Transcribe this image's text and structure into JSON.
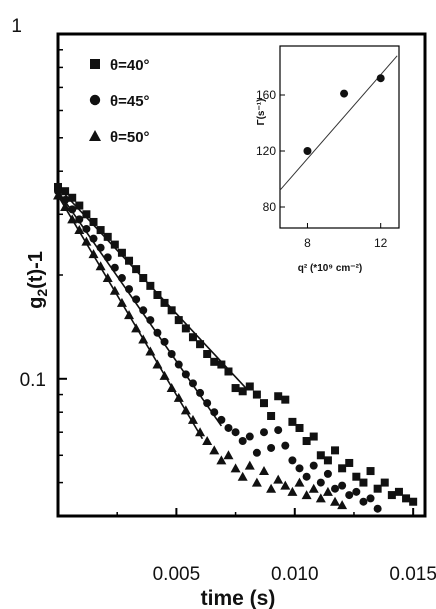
{
  "chart_data": [
    {
      "type": "scatter",
      "xlabel": "time (s)",
      "ylabel": "g2(t)-1",
      "ylabel_main": "g",
      "ylabel_sub": "2",
      "ylabel_rest": "(t)-1",
      "yscale": "log",
      "xlim": [
        0,
        0.0155
      ],
      "ylim": [
        0.04,
        1.0
      ],
      "x_ticks": [
        0.005,
        0.01,
        0.015
      ],
      "x_tick_labels": [
        "0.005",
        "0.010",
        "0.015"
      ],
      "y_ticks": [
        0.1,
        1
      ],
      "y_tick_labels": [
        "0.1",
        "1"
      ],
      "legend_position": "top-left",
      "series": [
        {
          "name": "θ=40°",
          "marker": "square",
          "x": [
            0.0,
            0.0003,
            0.0006,
            0.0009,
            0.0012,
            0.0015,
            0.0018,
            0.0021,
            0.0024,
            0.0027,
            0.003,
            0.0033,
            0.0036,
            0.0039,
            0.0042,
            0.0045,
            0.0048,
            0.0051,
            0.0054,
            0.0057,
            0.006,
            0.0063,
            0.0066,
            0.0069,
            0.0072,
            0.0075,
            0.0078,
            0.0081,
            0.0084,
            0.0087,
            0.009,
            0.0093,
            0.0096,
            0.0099,
            0.0102,
            0.0105,
            0.0108,
            0.0111,
            0.0114,
            0.0117,
            0.012,
            0.0123,
            0.0126,
            0.0129,
            0.0132,
            0.0135,
            0.0138,
            0.0141,
            0.0144,
            0.0147,
            0.015
          ],
          "y": [
            0.36,
            0.35,
            0.335,
            0.318,
            0.3,
            0.285,
            0.27,
            0.258,
            0.245,
            0.232,
            0.22,
            0.208,
            0.196,
            0.186,
            0.175,
            0.166,
            0.158,
            0.148,
            0.14,
            0.132,
            0.126,
            0.118,
            0.112,
            0.11,
            0.105,
            0.094,
            0.092,
            0.095,
            0.09,
            0.085,
            0.078,
            0.089,
            0.087,
            0.075,
            0.072,
            0.066,
            0.068,
            0.06,
            0.058,
            0.062,
            0.055,
            0.057,
            0.052,
            0.05,
            0.054,
            0.048,
            0.05,
            0.046,
            0.047,
            0.045,
            0.044
          ]
        },
        {
          "name": "θ=45°",
          "marker": "circle",
          "x": [
            0.0,
            0.0003,
            0.0006,
            0.0009,
            0.0012,
            0.0015,
            0.0018,
            0.0021,
            0.0024,
            0.0027,
            0.003,
            0.0033,
            0.0036,
            0.0039,
            0.0042,
            0.0045,
            0.0048,
            0.0051,
            0.0054,
            0.0057,
            0.006,
            0.0063,
            0.0066,
            0.0069,
            0.0072,
            0.0075,
            0.0078,
            0.0081,
            0.0084,
            0.0087,
            0.009,
            0.0093,
            0.0096,
            0.0099,
            0.0102,
            0.0105,
            0.0108,
            0.0111,
            0.0114,
            0.0117,
            0.012,
            0.0123,
            0.0126,
            0.0129,
            0.0132,
            0.0135
          ],
          "y": [
            0.35,
            0.33,
            0.31,
            0.29,
            0.272,
            0.255,
            0.24,
            0.225,
            0.21,
            0.196,
            0.182,
            0.17,
            0.158,
            0.148,
            0.136,
            0.128,
            0.118,
            0.11,
            0.103,
            0.097,
            0.091,
            0.085,
            0.08,
            0.076,
            0.072,
            0.07,
            0.066,
            0.068,
            0.061,
            0.07,
            0.063,
            0.071,
            0.064,
            0.058,
            0.055,
            0.052,
            0.056,
            0.05,
            0.053,
            0.048,
            0.049,
            0.046,
            0.047,
            0.044,
            0.045,
            0.042
          ]
        },
        {
          "name": "θ=50°",
          "marker": "triangle",
          "x": [
            0.0,
            0.0003,
            0.0006,
            0.0009,
            0.0012,
            0.0015,
            0.0018,
            0.0021,
            0.0024,
            0.0027,
            0.003,
            0.0033,
            0.0036,
            0.0039,
            0.0042,
            0.0045,
            0.0048,
            0.0051,
            0.0054,
            0.0057,
            0.006,
            0.0063,
            0.0066,
            0.0069,
            0.0072,
            0.0075,
            0.0078,
            0.0081,
            0.0084,
            0.0087,
            0.009,
            0.0093,
            0.0096,
            0.0099,
            0.0102,
            0.0105,
            0.0108,
            0.0111,
            0.0114,
            0.0117,
            0.012
          ],
          "y": [
            0.34,
            0.315,
            0.29,
            0.27,
            0.25,
            0.23,
            0.212,
            0.196,
            0.18,
            0.166,
            0.153,
            0.14,
            0.13,
            0.12,
            0.11,
            0.102,
            0.094,
            0.088,
            0.081,
            0.076,
            0.07,
            0.066,
            0.062,
            0.058,
            0.06,
            0.055,
            0.052,
            0.056,
            0.05,
            0.054,
            0.048,
            0.051,
            0.049,
            0.047,
            0.05,
            0.046,
            0.048,
            0.045,
            0.047,
            0.044,
            0.043
          ]
        }
      ],
      "fit_lines": [
        {
          "series": "θ=40°",
          "x": [
            0.0,
            0.008
          ],
          "y": [
            0.36,
            0.093
          ]
        },
        {
          "series": "θ=45°",
          "x": [
            0.0,
            0.0069
          ],
          "y": [
            0.35,
            0.073
          ]
        },
        {
          "series": "θ=50°",
          "x": [
            0.0,
            0.0061
          ],
          "y": [
            0.34,
            0.067
          ]
        }
      ]
    },
    {
      "type": "scatter",
      "position": "inset-top-right",
      "xlabel": "q² (*10⁹ cm⁻²)",
      "ylabel": "Γ(s⁻¹)",
      "xlim": [
        6.5,
        13.0
      ],
      "ylim": [
        65,
        195
      ],
      "x_ticks": [
        8,
        12
      ],
      "x_tick_labels": [
        "8",
        "12"
      ],
      "y_ticks": [
        80,
        120,
        160
      ],
      "y_tick_labels": [
        "80",
        "120",
        "160"
      ],
      "series": [
        {
          "name": "",
          "x": [
            8,
            10,
            12
          ],
          "y": [
            120,
            161,
            172
          ]
        }
      ],
      "fit_line": {
        "x": [
          6.5,
          12.9
        ],
        "y": [
          92,
          188
        ]
      }
    }
  ]
}
